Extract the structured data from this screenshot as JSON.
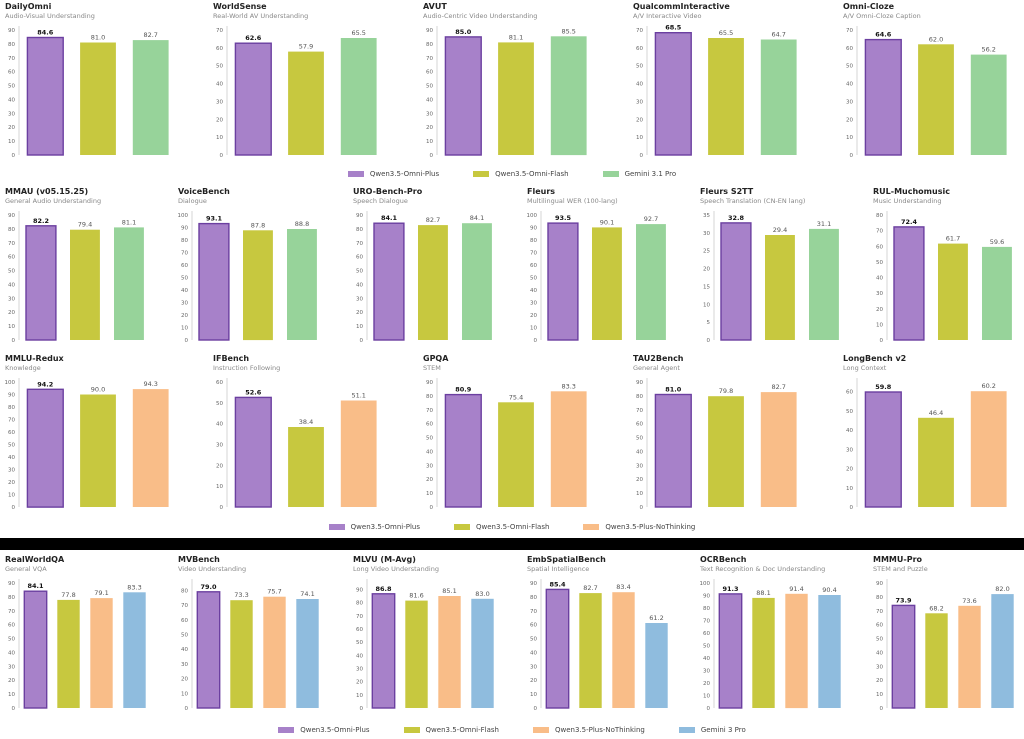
{
  "colors": {
    "purple": "#a781c9",
    "purple_edge": "#6b3fa0",
    "olive": "#c7c83f",
    "green": "#97d39a",
    "orange": "#f9bd88",
    "blue": "#8fbcde",
    "separator": "#000000"
  },
  "legends": [
    {
      "items": [
        {
          "label": "Qwen3.5-Omni-Plus",
          "color": "#a781c9"
        },
        {
          "label": "Qwen3.5-Omni-Flash",
          "color": "#c7c83f"
        },
        {
          "label": "Gemini 3.1 Pro",
          "color": "#97d39a"
        }
      ]
    },
    {
      "items": [
        {
          "label": "Qwen3.5-Omni-Plus",
          "color": "#a781c9"
        },
        {
          "label": "Qwen3.5-Omni-Flash",
          "color": "#c7c83f"
        },
        {
          "label": "Qwen3.5-Plus-NoThinking",
          "color": "#f9bd88"
        }
      ]
    },
    {
      "items": [
        {
          "label": "Qwen3.5-Omni-Plus",
          "color": "#a781c9"
        },
        {
          "label": "Qwen3.5-Omni-Flash",
          "color": "#c7c83f"
        },
        {
          "label": "Qwen3.5-Plus-NoThinking",
          "color": "#f9bd88"
        },
        {
          "label": "Gemini 3 Pro",
          "color": "#8fbcde"
        }
      ]
    }
  ],
  "chart_data": [
    {
      "type": "bar",
      "title": "DailyOmni",
      "subtitle": "Audio-Visual Understanding",
      "values": [
        84.6,
        81.0,
        82.7
      ],
      "colors": [
        "purple",
        "olive",
        "green"
      ],
      "ylim": [
        0,
        90
      ]
    },
    {
      "type": "bar",
      "title": "WorldSense",
      "subtitle": "Real-World AV Understanding",
      "values": [
        62.6,
        57.9,
        65.5
      ],
      "colors": [
        "purple",
        "olive",
        "green"
      ],
      "ylim": [
        0,
        70
      ]
    },
    {
      "type": "bar",
      "title": "AVUT",
      "subtitle": "Audio-Centric Video Understanding",
      "values": [
        85.0,
        81.1,
        85.5
      ],
      "colors": [
        "purple",
        "olive",
        "green"
      ],
      "ylim": [
        0,
        90
      ]
    },
    {
      "type": "bar",
      "title": "QualcommInteractive",
      "subtitle": "A/V Interactive Video",
      "values": [
        68.5,
        65.5,
        64.7
      ],
      "colors": [
        "purple",
        "olive",
        "green"
      ],
      "ylim": [
        0,
        70
      ]
    },
    {
      "type": "bar",
      "title": "Omni-Cloze",
      "subtitle": "A/V Omni-Cloze Caption",
      "values": [
        64.6,
        62.0,
        56.2
      ],
      "colors": [
        "purple",
        "olive",
        "green"
      ],
      "ylim": [
        0,
        70
      ]
    },
    {
      "type": "bar",
      "title": "MMAU (v05.15.25)",
      "subtitle": "General Audio Understanding",
      "values": [
        82.2,
        79.4,
        81.1
      ],
      "colors": [
        "purple",
        "olive",
        "green"
      ],
      "ylim": [
        0,
        90
      ]
    },
    {
      "type": "bar",
      "title": "VoiceBench",
      "subtitle": "Dialogue",
      "values": [
        93.1,
        87.8,
        88.8
      ],
      "colors": [
        "purple",
        "olive",
        "green"
      ],
      "ylim": [
        0,
        100
      ]
    },
    {
      "type": "bar",
      "title": "URO-Bench-Pro",
      "subtitle": "Speech Dialogue",
      "values": [
        84.1,
        82.7,
        84.1
      ],
      "colors": [
        "purple",
        "olive",
        "green"
      ],
      "ylim": [
        0,
        90
      ]
    },
    {
      "type": "bar",
      "title": "Fleurs",
      "subtitle": "Multilingual WER (100-lang)",
      "values": [
        93.5,
        90.1,
        92.7
      ],
      "colors": [
        "purple",
        "olive",
        "green"
      ],
      "ylim": [
        0,
        100
      ]
    },
    {
      "type": "bar",
      "title": "Fleurs S2TT",
      "subtitle": "Speech Translation (CN-EN lang)",
      "values": [
        32.8,
        29.4,
        31.1
      ],
      "colors": [
        "purple",
        "olive",
        "green"
      ],
      "ylim": [
        0,
        35
      ]
    },
    {
      "type": "bar",
      "title": "RUL-Muchomusic",
      "subtitle": "Music Understanding",
      "values": [
        72.4,
        61.7,
        59.6
      ],
      "colors": [
        "purple",
        "olive",
        "green"
      ],
      "ylim": [
        0,
        80
      ]
    },
    {
      "type": "bar",
      "title": "MMLU-Redux",
      "subtitle": "Knowledge",
      "values": [
        94.2,
        90.0,
        94.3
      ],
      "colors": [
        "purple",
        "olive",
        "orange"
      ],
      "ylim": [
        0,
        100
      ]
    },
    {
      "type": "bar",
      "title": "IFBench",
      "subtitle": "Instruction Following",
      "values": [
        52.6,
        38.4,
        51.1
      ],
      "colors": [
        "purple",
        "olive",
        "orange"
      ],
      "ylim": [
        0,
        60
      ]
    },
    {
      "type": "bar",
      "title": "GPQA",
      "subtitle": "STEM",
      "values": [
        80.9,
        75.4,
        83.3
      ],
      "colors": [
        "purple",
        "olive",
        "orange"
      ],
      "ylim": [
        0,
        90
      ]
    },
    {
      "type": "bar",
      "title": "TAU2Bench",
      "subtitle": "General Agent",
      "values": [
        81.0,
        79.8,
        82.7
      ],
      "colors": [
        "purple",
        "olive",
        "orange"
      ],
      "ylim": [
        0,
        90
      ]
    },
    {
      "type": "bar",
      "title": "LongBench v2",
      "subtitle": "Long Context",
      "values": [
        59.8,
        46.4,
        60.2
      ],
      "colors": [
        "purple",
        "olive",
        "orange"
      ],
      "ylim": [
        0,
        65
      ]
    },
    {
      "type": "bar",
      "title": "RealWorldQA",
      "subtitle": "General VQA",
      "values": [
        84.1,
        77.8,
        79.1,
        83.3
      ],
      "colors": [
        "purple",
        "olive",
        "orange",
        "blue"
      ],
      "ylim": [
        0,
        90
      ]
    },
    {
      "type": "bar",
      "title": "MVBench",
      "subtitle": "Video Understanding",
      "values": [
        79.0,
        73.3,
        75.7,
        74.1
      ],
      "colors": [
        "purple",
        "olive",
        "orange",
        "blue"
      ],
      "ylim": [
        0,
        85
      ]
    },
    {
      "type": "bar",
      "title": "MLVU (M-Avg)",
      "subtitle": "Long Video Understanding",
      "values": [
        86.8,
        81.6,
        85.1,
        83.0
      ],
      "colors": [
        "purple",
        "olive",
        "orange",
        "blue"
      ],
      "ylim": [
        0,
        95
      ]
    },
    {
      "type": "bar",
      "title": "EmbSpatialBench",
      "subtitle": "Spatial Intelligence",
      "values": [
        85.4,
        82.7,
        83.4,
        61.2
      ],
      "colors": [
        "purple",
        "olive",
        "orange",
        "blue"
      ],
      "ylim": [
        0,
        90
      ]
    },
    {
      "type": "bar",
      "title": "OCRBench",
      "subtitle": "Text Recognition & Doc Understanding",
      "values": [
        91.3,
        88.1,
        91.4,
        90.4
      ],
      "colors": [
        "purple",
        "olive",
        "orange",
        "blue"
      ],
      "ylim": [
        0,
        100
      ]
    },
    {
      "type": "bar",
      "title": "MMMU-Pro",
      "subtitle": "STEM and Puzzle",
      "values": [
        73.9,
        68.2,
        73.6,
        82.0
      ],
      "colors": [
        "purple",
        "olive",
        "orange",
        "blue"
      ],
      "ylim": [
        0,
        90
      ]
    }
  ]
}
